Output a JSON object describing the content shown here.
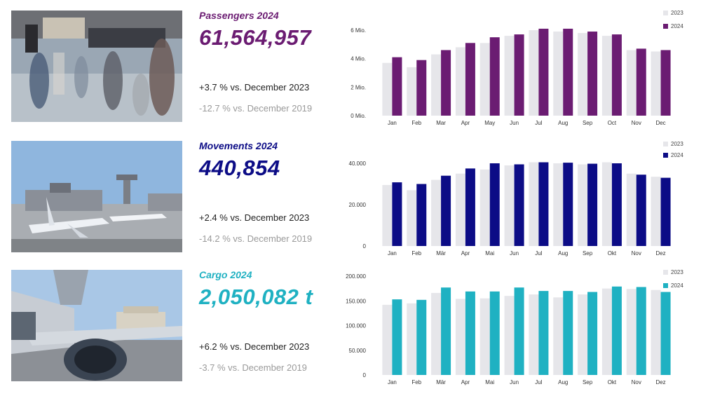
{
  "colors": {
    "prior_year_bar": "#e6e6ea",
    "passengers": "#6b1c72",
    "movements": "#0c0c86",
    "cargo": "#1fb1c2"
  },
  "panels": [
    {
      "id": "passengers",
      "photo_icon": "airport-terminal-photo",
      "title": "Passengers 2024",
      "value": "61,564,957",
      "comparison_2023": "+3.7 % vs. December 2023",
      "comparison_2019": "-12.7 % vs. December 2019"
    },
    {
      "id": "movements",
      "photo_icon": "aircraft-apron-photo",
      "title": "Movements 2024",
      "value": "440,854",
      "comparison_2023": "+2.4 % vs. December 2023",
      "comparison_2019": "-14.2 % vs. December 2019"
    },
    {
      "id": "cargo",
      "photo_icon": "cargo-aircraft-photo",
      "title": "Cargo 2024",
      "value": "2,050,082 t",
      "comparison_2023": "+6.2 % vs. December 2023",
      "comparison_2019": "-3.7 % vs. December 2019"
    }
  ],
  "chart_data": [
    {
      "type": "bar",
      "categories": [
        "Jan",
        "Feb",
        "Mar",
        "Apr",
        "May",
        "Jun",
        "Jul",
        "Aug",
        "Sep",
        "Oct",
        "Nov",
        "Dec"
      ],
      "series": [
        {
          "name": "2023",
          "values": [
            3.7,
            3.4,
            4.3,
            4.8,
            5.1,
            5.6,
            6.0,
            5.9,
            5.8,
            5.6,
            4.6,
            4.5
          ]
        },
        {
          "name": "2024",
          "values": [
            4.1,
            3.9,
            4.6,
            5.1,
            5.5,
            5.7,
            6.1,
            6.1,
            5.9,
            5.7,
            4.7,
            4.6
          ]
        }
      ],
      "y_ticks": [
        {
          "value": 0,
          "label": "0 Mio."
        },
        {
          "value": 2,
          "label": "2 Mio."
        },
        {
          "value": 4,
          "label": "4 Mio."
        },
        {
          "value": 6,
          "label": "6 Mio."
        }
      ],
      "ylim": [
        0,
        6.0
      ],
      "legend_position": "top-right",
      "grid": false
    },
    {
      "type": "bar",
      "categories": [
        "Jan",
        "Feb",
        "Mär",
        "Apr",
        "Mai",
        "Jun",
        "Jul",
        "Aug",
        "Sep",
        "Okt",
        "Nov",
        "Dez"
      ],
      "series": [
        {
          "name": "2023",
          "values": [
            29500,
            27000,
            32000,
            35000,
            37000,
            39000,
            40500,
            40000,
            39500,
            40500,
            35000,
            33500
          ]
        },
        {
          "name": "2024",
          "values": [
            30800,
            30000,
            34000,
            37500,
            40000,
            39500,
            40500,
            40300,
            39800,
            40000,
            34500,
            33000
          ]
        }
      ],
      "y_ticks": [
        {
          "value": 0,
          "label": "0"
        },
        {
          "value": 20000,
          "label": "20.000"
        },
        {
          "value": 40000,
          "label": "40.000"
        }
      ],
      "ylim": [
        0,
        40000
      ],
      "legend_position": "top-right",
      "grid": false
    },
    {
      "type": "bar",
      "categories": [
        "Jan",
        "Feb",
        "Mär",
        "Apr",
        "Mai",
        "Jun",
        "Jul",
        "Aug",
        "Sep",
        "Okt",
        "Nov",
        "Dez"
      ],
      "series": [
        {
          "name": "2023",
          "values": [
            142000,
            145000,
            166000,
            154000,
            155000,
            160000,
            163000,
            157000,
            163000,
            175000,
            174000,
            172000
          ]
        },
        {
          "name": "2024",
          "values": [
            153000,
            152000,
            177000,
            169000,
            169000,
            177000,
            170000,
            170000,
            168000,
            179000,
            178000,
            168000
          ]
        }
      ],
      "y_ticks": [
        {
          "value": 0,
          "label": "0"
        },
        {
          "value": 50000,
          "label": "50.000"
        },
        {
          "value": 100000,
          "label": "100.000"
        },
        {
          "value": 150000,
          "label": "150.000"
        },
        {
          "value": 200000,
          "label": "200.000"
        }
      ],
      "ylim": [
        0,
        200000
      ],
      "legend_position": "top-right",
      "grid": false
    }
  ]
}
